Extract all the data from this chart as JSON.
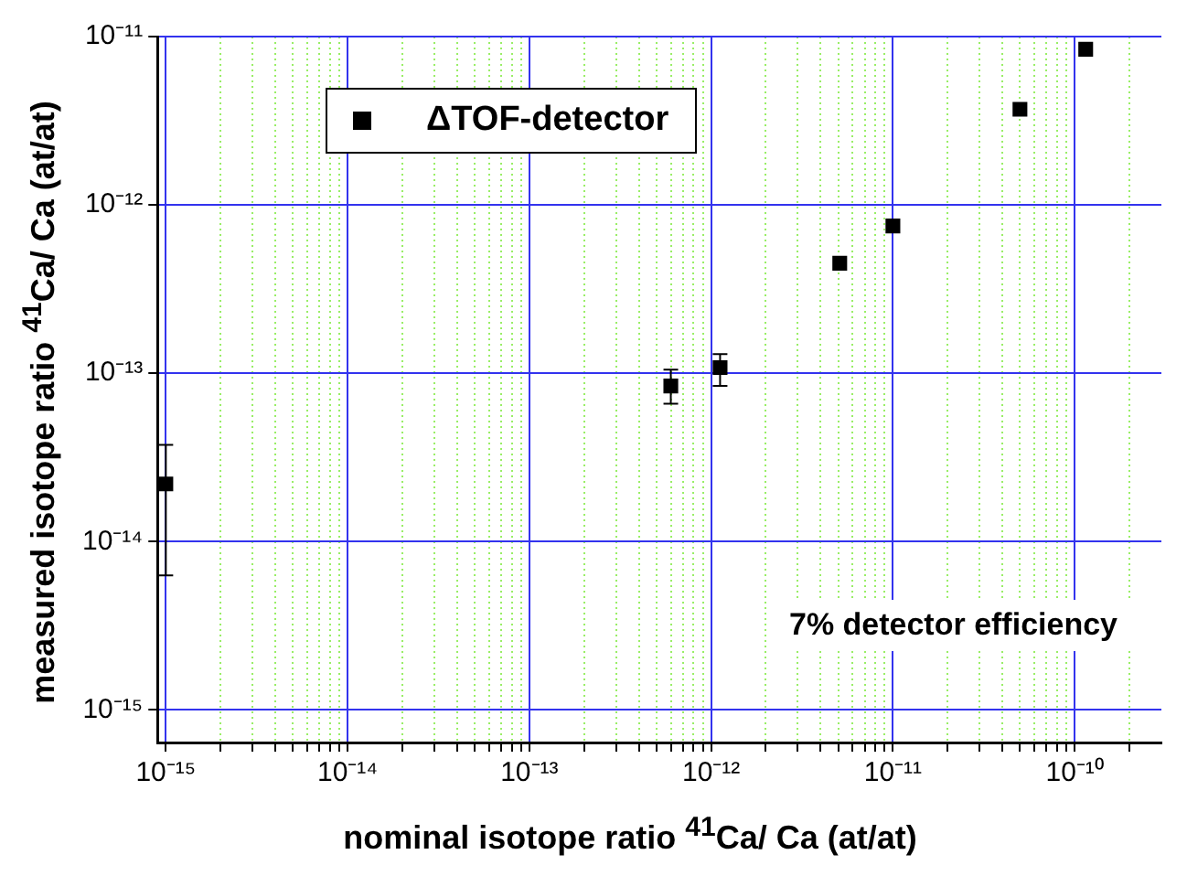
{
  "chart_data": {
    "type": "scatter",
    "xlabel": "nominal isotope ratio $^{41}$Ca/ Ca (at/at)",
    "ylabel": "measured isotope ratio $^{41}$Ca/ Ca (at/at)",
    "log": "xy",
    "grid": true,
    "legend": "top left",
    "marker": "square",
    "xlim": [
      9e-16,
      3e-10
    ],
    "ylim": [
      6.4e-16,
      1e-11
    ],
    "xticks": [
      {
        "value": 1e-15,
        "label": "10⁻¹⁵"
      },
      {
        "value": 2e-15,
        "label": null
      },
      {
        "value": 3e-15,
        "label": null
      },
      {
        "value": 4e-15,
        "label": null
      },
      {
        "value": 5e-15,
        "label": null
      },
      {
        "value": 6e-15,
        "label": null
      },
      {
        "value": 7e-15,
        "label": null
      },
      {
        "value": 8e-15,
        "label": null
      },
      {
        "value": 9e-15,
        "label": null
      },
      {
        "value": 1e-14,
        "label": "10⁻¹⁴"
      },
      {
        "value": 2e-14,
        "label": null
      },
      {
        "value": 3e-14,
        "label": null
      },
      {
        "value": 4e-14,
        "label": null
      },
      {
        "value": 5e-14,
        "label": null
      },
      {
        "value": 6e-14,
        "label": null
      },
      {
        "value": 7e-14,
        "label": null
      },
      {
        "value": 8e-14,
        "label": null
      },
      {
        "value": 9e-14,
        "label": null
      },
      {
        "value": 1e-13,
        "label": "10⁻¹³"
      },
      {
        "value": 2e-13,
        "label": null
      },
      {
        "value": 3e-13,
        "label": null
      },
      {
        "value": 4e-13,
        "label": null
      },
      {
        "value": 5e-13,
        "label": null
      },
      {
        "value": 6e-13,
        "label": null
      },
      {
        "value": 7e-13,
        "label": null
      },
      {
        "value": 8e-13,
        "label": null
      },
      {
        "value": 9e-13,
        "label": null
      },
      {
        "value": 1e-12,
        "label": "10⁻¹²"
      },
      {
        "value": 2e-12,
        "label": null
      },
      {
        "value": 3e-12,
        "label": null
      },
      {
        "value": 4e-12,
        "label": null
      },
      {
        "value": 5e-12,
        "label": null
      },
      {
        "value": 6e-12,
        "label": null
      },
      {
        "value": 7e-12,
        "label": null
      },
      {
        "value": 8e-12,
        "label": null
      },
      {
        "value": 9e-12,
        "label": null
      },
      {
        "value": 1e-11,
        "label": "10⁻¹¹"
      },
      {
        "value": 2e-11,
        "label": null
      },
      {
        "value": 3e-11,
        "label": null
      },
      {
        "value": 4e-11,
        "label": null
      },
      {
        "value": 5e-11,
        "label": null
      },
      {
        "value": 6e-11,
        "label": null
      },
      {
        "value": 7e-11,
        "label": null
      },
      {
        "value": 8e-11,
        "label": null
      },
      {
        "value": 9e-11,
        "label": null
      },
      {
        "value": 1e-10,
        "label": "10⁻¹⁰"
      },
      {
        "value": 2e-10,
        "label": null
      }
    ],
    "yticks": [
      {
        "value": 1e-15,
        "label": "10⁻¹⁵"
      },
      {
        "value": 1e-14,
        "label": "10⁻¹⁴"
      },
      {
        "value": 1e-13,
        "label": "10⁻¹³"
      },
      {
        "value": 1e-12,
        "label": "10⁻¹²"
      },
      {
        "value": 1e-11,
        "label": "10⁻¹¹"
      }
    ],
    "annotations": [
      "7% detector efficiency"
    ],
    "series": [
      {
        "name": "ΔTOF-detector",
        "color": "#000000",
        "x": [
          1e-15,
          6e-13,
          1.12e-12,
          5.1e-12,
          1e-11,
          5e-11,
          1.15e-10
        ],
        "values": [
          2.2e-14,
          8.4e-14,
          1.08e-13,
          4.5e-13,
          7.5e-13,
          3.7e-12,
          8.4e-12
        ],
        "errors": [
          [
            6.3e-15,
            3.75e-14
          ],
          [
            6.6e-14,
            1.05e-13
          ],
          [
            8.4e-14,
            1.3e-13
          ],
          null,
          null,
          null,
          null
        ]
      }
    ]
  }
}
